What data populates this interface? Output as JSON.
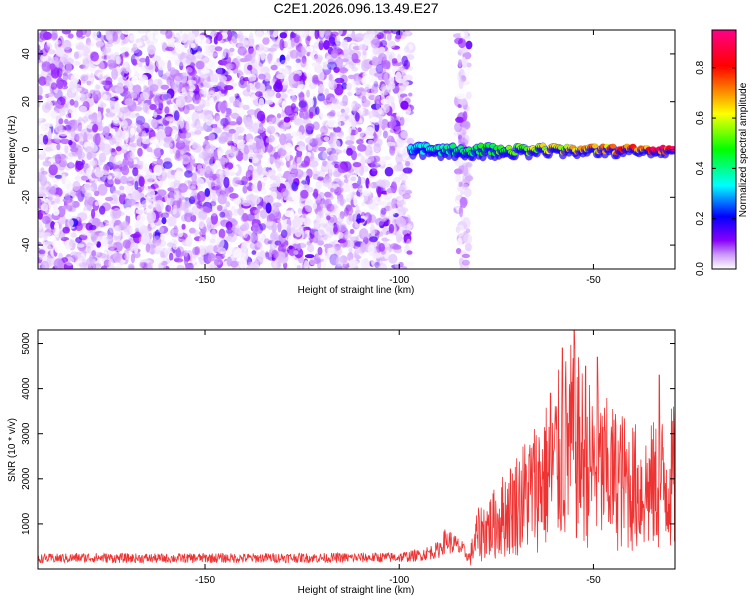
{
  "title": "C2E1.2026.096.13.49.E27",
  "chart_data": [
    {
      "type": "heatmap",
      "xlabel": "Height of straight line (km)",
      "ylabel": "Frequency (Hz)",
      "xlim": [
        -193,
        -29
      ],
      "ylim": [
        -50,
        50
      ],
      "x_ticks": [
        -150,
        -100,
        -50
      ],
      "y_ticks": [
        -40,
        -20,
        0,
        20,
        40
      ],
      "x_tick_labels": [
        "-150",
        "-100",
        "-50"
      ],
      "y_tick_labels": [
        "-40",
        "-20",
        "0",
        "20",
        "40"
      ],
      "colorbar": {
        "label": "Normalized spectral amplitude",
        "range": [
          0,
          0.95
        ],
        "ticks": [
          0,
          0.2,
          0.4,
          0.6,
          0.8
        ],
        "tick_labels": [
          "0.0",
          "0.2",
          "0.4",
          "0.6",
          "0.8"
        ],
        "colors": [
          "#ffffff",
          "#8800ff",
          "#0000ff",
          "#00ffff",
          "#00ff00",
          "#ffff00",
          "#ff0000",
          "#ff00aa"
        ]
      },
      "regions": [
        {
          "description": "broadband noise",
          "x": [
            -193,
            -97
          ],
          "freq": [
            -50,
            50
          ],
          "amplitude": [
            0.0,
            0.2
          ]
        },
        {
          "description": "noise column",
          "x": [
            -85,
            -82
          ],
          "freq": [
            -50,
            50
          ],
          "amplitude": [
            0.0,
            0.15
          ]
        },
        {
          "description": "carrier track",
          "x": [
            -97,
            -29
          ],
          "freq_center": 0,
          "amplitude_start": 0.35,
          "amplitude_end": 0.95
        }
      ]
    },
    {
      "type": "line",
      "xlabel": "Height of straight line (km)",
      "ylabel": "SNR (10 * v/v)",
      "xlim": [
        -193,
        -29
      ],
      "ylim": [
        0,
        5300
      ],
      "x_ticks": [
        -150,
        -100,
        -50
      ],
      "y_ticks": [
        1000,
        2000,
        3000,
        4000,
        5000
      ],
      "x_tick_labels": [
        "-150",
        "-100",
        "-50"
      ],
      "y_tick_labels": [
        "1000",
        "2000",
        "3000",
        "4000",
        "5000"
      ],
      "series": [
        {
          "color": "#ee3333",
          "x": [
            -193,
            -180,
            -170,
            -160,
            -150,
            -140,
            -130,
            -120,
            -110,
            -100,
            -95,
            -90,
            -88,
            -86,
            -84,
            -82,
            -80,
            -78,
            -76,
            -74,
            -72,
            -70,
            -68,
            -66,
            -64,
            -62,
            -60,
            -58,
            -56,
            -54,
            -52,
            -50,
            -48,
            -46,
            -44,
            -42,
            -40,
            -38,
            -36,
            -34,
            -32,
            -30,
            -29
          ],
          "y": [
            230,
            250,
            240,
            235,
            245,
            240,
            250,
            245,
            250,
            260,
            300,
            420,
            650,
            550,
            450,
            250,
            900,
            1100,
            1200,
            1400,
            1600,
            1800,
            2000,
            2200,
            2400,
            2600,
            2900,
            3200,
            3500,
            3300,
            3000,
            2800,
            2700,
            2600,
            2500,
            2400,
            2300,
            2200,
            2200,
            2300,
            2400,
            2500,
            2500
          ],
          "peaks": [
            {
              "x": -55,
              "y": 5300
            },
            {
              "x": -58,
              "y": 4900
            },
            {
              "x": -49,
              "y": 4700
            },
            {
              "x": -33,
              "y": 4300
            },
            {
              "x": -52,
              "y": 4500
            },
            {
              "x": -61,
              "y": 3900
            }
          ]
        }
      ]
    }
  ]
}
